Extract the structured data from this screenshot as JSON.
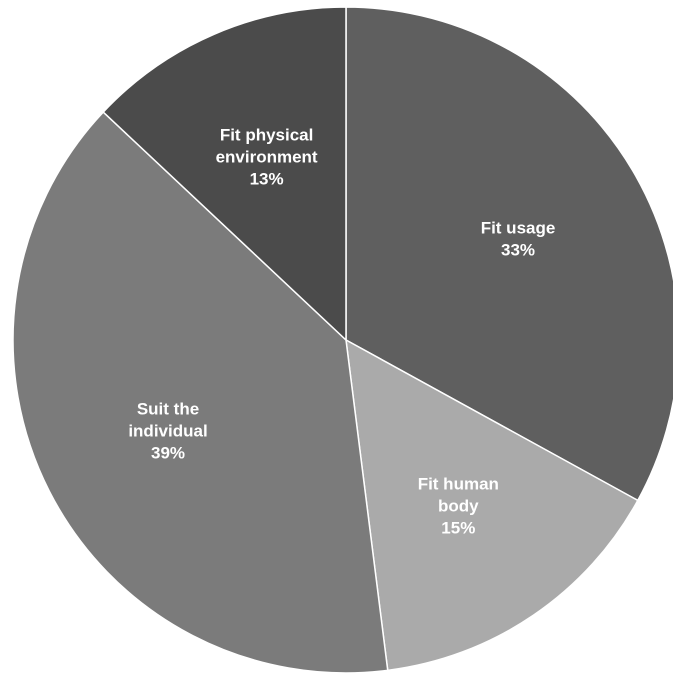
{
  "chart_data": {
    "type": "pie",
    "title": "",
    "start_angle_deg": 0,
    "direction": "clockwise",
    "slices": [
      {
        "name": "Fit usage",
        "label_lines": [
          "Fit usage"
        ],
        "percent_label": "33%",
        "value": 33,
        "color": "#5f5f5f"
      },
      {
        "name": "Fit human body",
        "label_lines": [
          "Fit human",
          "body"
        ],
        "percent_label": "15%",
        "value": 15,
        "color": "#aaaaaa"
      },
      {
        "name": "Suit the individual",
        "label_lines": [
          "Suit the",
          "individual"
        ],
        "percent_label": "39%",
        "value": 39,
        "color": "#7b7b7b"
      },
      {
        "name": "Fit physical environment",
        "label_lines": [
          "Fit physical",
          "environment"
        ],
        "percent_label": "13%",
        "value": 13,
        "color": "#4b4b4b"
      }
    ],
    "slice_border_color": "#ffffff",
    "legend": "none"
  }
}
